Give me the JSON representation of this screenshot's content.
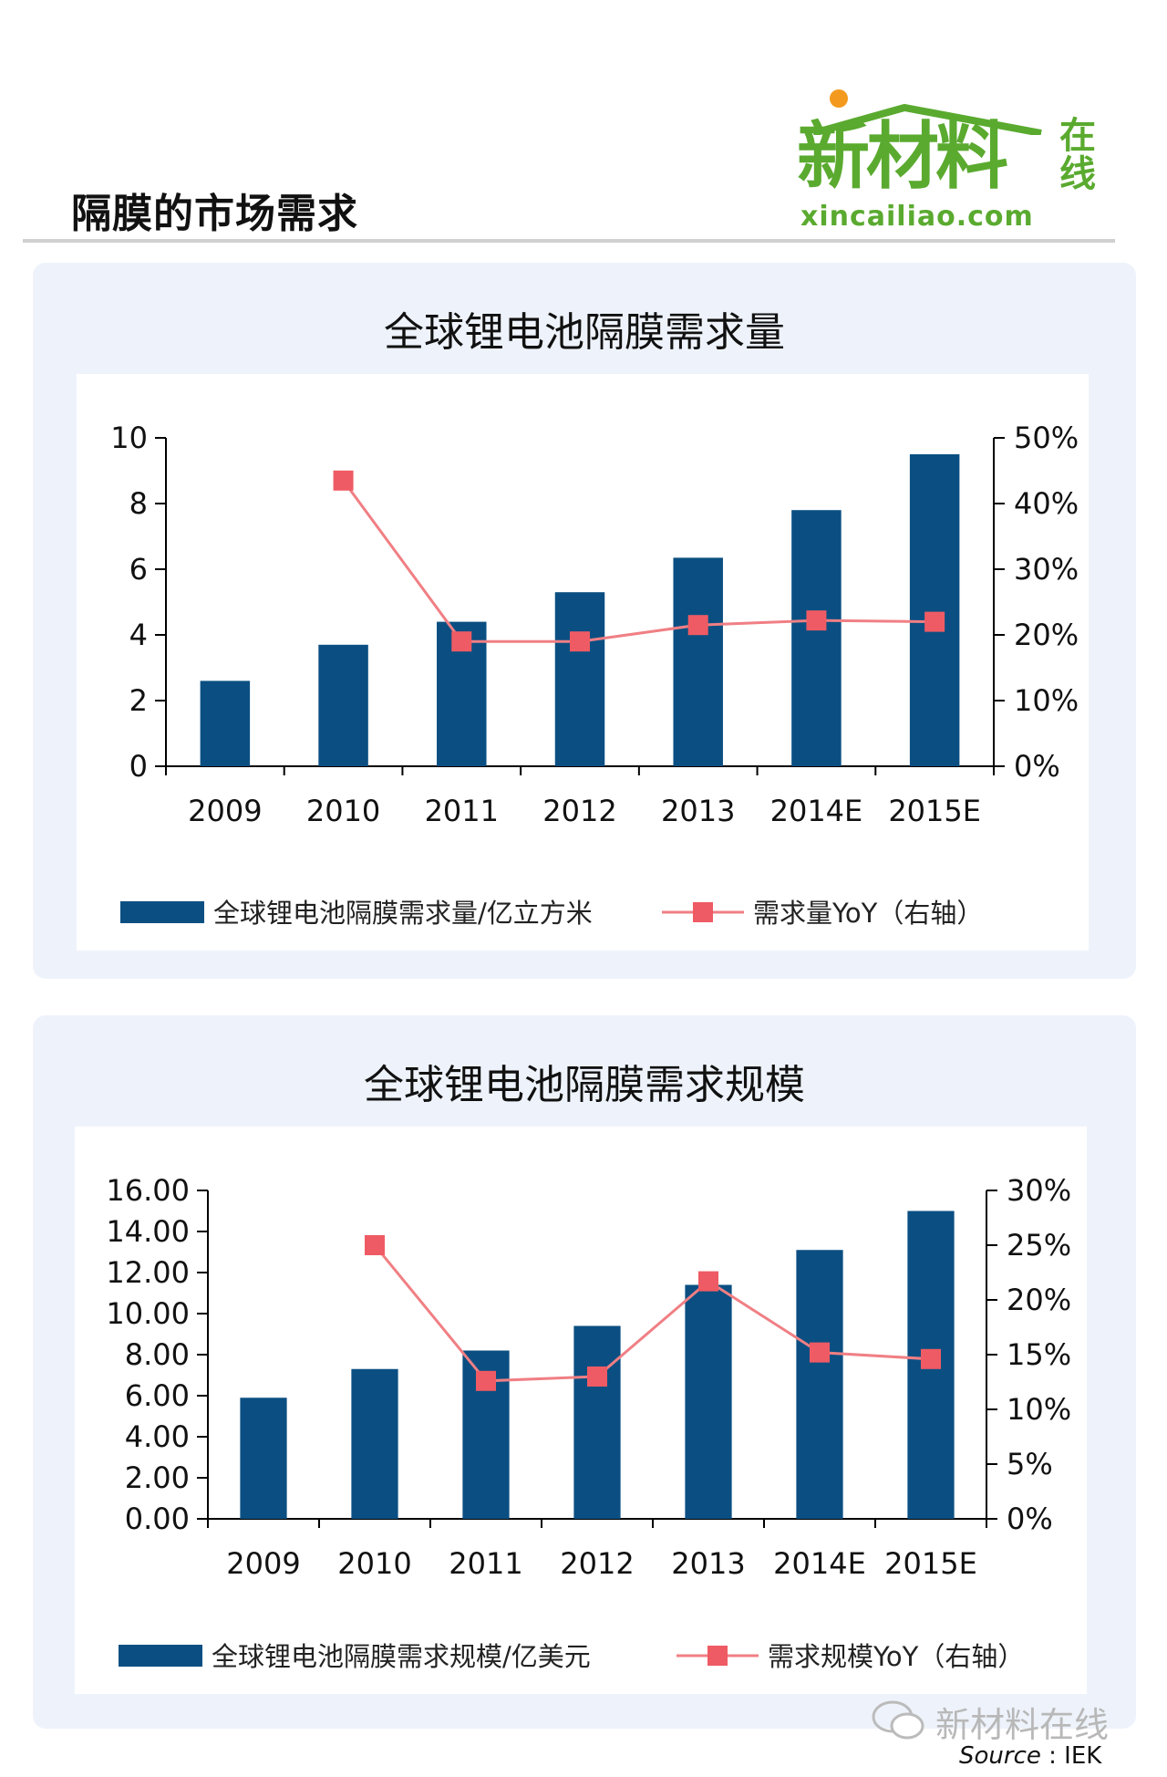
{
  "header": {
    "page_title": "隔膜的市场需求",
    "logo_main": "新材料",
    "logo_side": "在线",
    "logo_url": "xincailiao.com",
    "colors": {
      "logo_green": "#5aaa2f",
      "logo_dot": "#f39a1e"
    }
  },
  "colors": {
    "bar": "#0b4f82",
    "line": "#f07f84",
    "marker": "#ef5b64"
  },
  "chart_data": [
    {
      "type": "bar",
      "title": "全球锂电池隔膜需求量",
      "categories": [
        "2009",
        "2010",
        "2011",
        "2012",
        "2013",
        "2014E",
        "2015E"
      ],
      "series": [
        {
          "name": "全球锂电池隔膜需求量/亿立方米",
          "type": "bar",
          "axis": "left",
          "values": [
            2.6,
            3.7,
            4.4,
            5.3,
            6.35,
            7.8,
            9.5
          ]
        },
        {
          "name": "需求量YoY（右轴）",
          "type": "line",
          "axis": "right",
          "values": [
            null,
            0.435,
            0.19,
            0.19,
            0.215,
            0.222,
            0.22
          ]
        }
      ],
      "ylim": [
        0,
        10
      ],
      "yticks": [
        "0",
        "2",
        "4",
        "6",
        "8",
        "10"
      ],
      "y2lim": [
        0,
        0.5
      ],
      "y2ticks": [
        "0%",
        "10%",
        "20%",
        "30%",
        "40%",
        "50%"
      ],
      "legend_position": "bottom"
    },
    {
      "type": "bar",
      "title": "全球锂电池隔膜需求规模",
      "categories": [
        "2009",
        "2010",
        "2011",
        "2012",
        "2013",
        "2014E",
        "2015E"
      ],
      "series": [
        {
          "name": "全球锂电池隔膜需求规模/亿美元",
          "type": "bar",
          "axis": "left",
          "values": [
            5.9,
            7.3,
            8.2,
            9.4,
            11.4,
            13.1,
            15.0
          ]
        },
        {
          "name": "需求规模YoY（右轴）",
          "type": "line",
          "axis": "right",
          "values": [
            null,
            0.25,
            0.126,
            0.13,
            0.217,
            0.152,
            0.146
          ]
        }
      ],
      "ylim": [
        0,
        16
      ],
      "yticks": [
        "0.00",
        "2.00",
        "4.00",
        "6.00",
        "8.00",
        "10.00",
        "12.00",
        "14.00",
        "16.00"
      ],
      "y2lim": [
        0,
        0.3
      ],
      "y2ticks": [
        "0%",
        "5%",
        "10%",
        "15%",
        "20%",
        "25%",
        "30%"
      ],
      "legend_position": "bottom"
    }
  ],
  "footer": {
    "watermark": "新材料在线",
    "source_label": "Source",
    "source_sep": " : ",
    "source_value": "IEK"
  }
}
